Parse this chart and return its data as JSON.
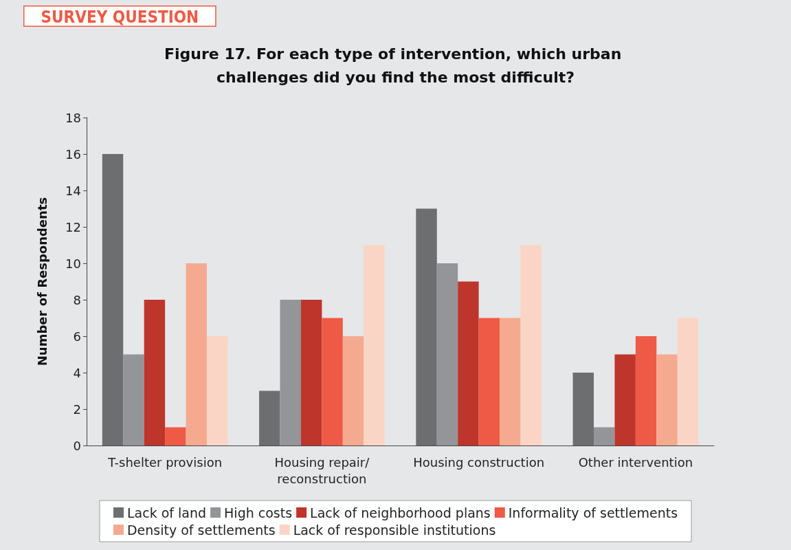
{
  "chart_data": {
    "type": "bar",
    "title": "Figure 17. For each type of intervention, which urban challenges did you find the most difficult?",
    "annotations": [
      "SURVEY QUESTION"
    ],
    "ylabel": "Number of Respondents",
    "categories": [
      "T-shelter provision",
      "Housing repair/\nreconstruction",
      "Housing construction",
      "Other intervention"
    ],
    "series": [
      {
        "name": "Lack of land",
        "color": "#6d6e70",
        "values": [
          16,
          3,
          13,
          4
        ]
      },
      {
        "name": "High costs",
        "color": "#939598",
        "values": [
          5,
          8,
          10,
          1
        ]
      },
      {
        "name": "Lack of neighborhood plans",
        "color": "#be352b",
        "values": [
          8,
          8,
          9,
          5
        ]
      },
      {
        "name": "Informality of settlements",
        "color": "#ee5a45",
        "values": [
          1,
          7,
          7,
          6
        ]
      },
      {
        "name": "Density of settlements",
        "color": "#f5aa8f",
        "values": [
          10,
          6,
          7,
          5
        ]
      },
      {
        "name": "Lack of responsible institutions",
        "color": "#fad5c5",
        "values": [
          6,
          11,
          11,
          7
        ]
      }
    ],
    "ylim": [
      0,
      18
    ],
    "yticks": [
      0,
      2,
      4,
      6,
      8,
      10,
      12,
      14,
      16,
      18
    ],
    "grid": false,
    "legend": "bottom"
  }
}
